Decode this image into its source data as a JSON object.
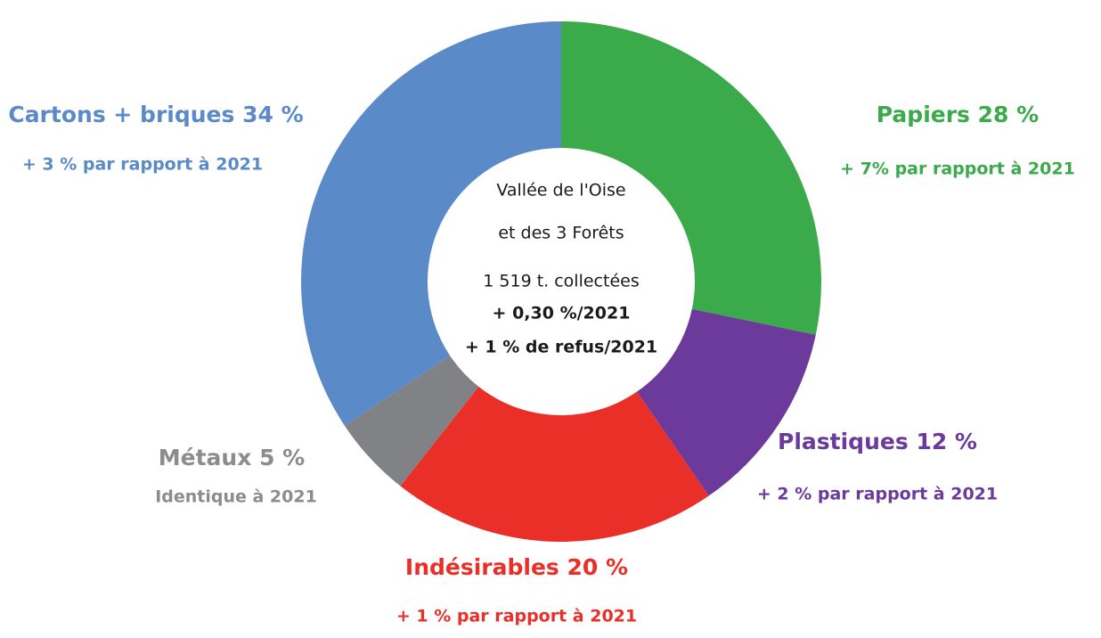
{
  "chart_data": {
    "type": "donut",
    "categories": [
      "Papiers",
      "Plastiques",
      "Indésirables",
      "Métaux",
      "Cartons + briques"
    ],
    "values": [
      28,
      12,
      20,
      5,
      34
    ],
    "value_labels": [
      "28 %",
      "12 %",
      "20 %",
      "5 %",
      "34 %"
    ],
    "colors": [
      "#3aaa4a",
      "#6b3a9b",
      "#ea2f28",
      "#808285",
      "#5b8ac9"
    ],
    "annotations": [
      "+ 7% par rapport à 2021",
      "+ 2 % par rapport à 2021",
      "+ 1 % par rapport à 2021",
      "Identique à 2021",
      "+ 3 % par rapport à 2021"
    ],
    "center_text": [
      "Vallée de l'Oise",
      "et des 3 Forêts",
      "1 519 t. collectées",
      "+ 0,30 %/2021",
      "+ 1 % de refus/2021"
    ]
  }
}
